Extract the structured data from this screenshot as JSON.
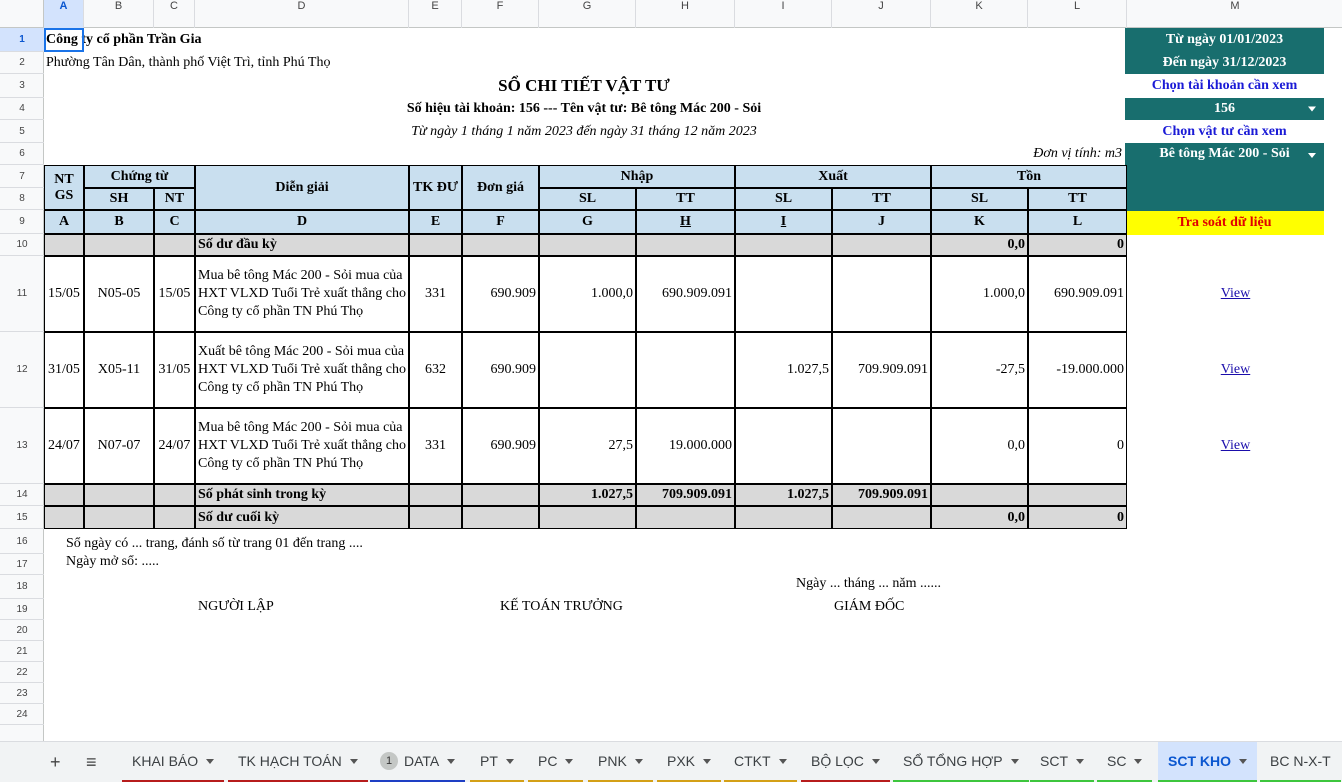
{
  "columns": [
    "A",
    "B",
    "C",
    "D",
    "E",
    "F",
    "G",
    "H",
    "I",
    "J",
    "K",
    "L",
    "M"
  ],
  "rows": [
    "1",
    "2",
    "3",
    "4",
    "5",
    "6",
    "7",
    "8",
    "9",
    "10",
    "11",
    "12",
    "13",
    "14",
    "15",
    "16",
    "17",
    "18",
    "19",
    "20",
    "21",
    "22",
    "23",
    "24"
  ],
  "company": "Công ty cổ phần Trần Gia",
  "address": "Phường Tân Dân, thành phố Việt Trì, tỉnh Phú Thọ",
  "report_title": "SỔ CHI TIẾT VẬT TƯ",
  "report_subtitle": "Số hiệu tài khoản: 156 --- Tên vật tư: Bê tông Mác 200 - Sỏi",
  "report_period": "Từ ngày 1 tháng 1 năm 2023 đến ngày 31 tháng 12 năm 2023",
  "unit": "Đơn vị tính: m3",
  "panel": {
    "from_date": "Từ ngày 01/01/2023",
    "to_date": "Đến ngày 31/12/2023",
    "choose_account_label": "Chọn tài khoản cần xem",
    "account_value": "156",
    "choose_material_label": "Chọn vật tư cần xem",
    "material_value": "Bê tông Mác 200 - Sỏi",
    "check_button": "Tra soát dữ liệu",
    "view_link": "View"
  },
  "headers": {
    "ntgs": "NT GS",
    "chung_tu": "Chứng từ",
    "sh": "SH",
    "nt": "NT",
    "dien_giai": "Diễn giải",
    "tk_du": "TK ĐƯ",
    "don_gia": "Đơn giá",
    "nhap": "Nhập",
    "xuat": "Xuất",
    "ton": "Tồn",
    "sl": "SL",
    "tt": "TT",
    "letters": [
      "A",
      "B",
      "C",
      "D",
      "E",
      "F",
      "G",
      "H",
      "I",
      "J",
      "K",
      "L"
    ]
  },
  "opening": {
    "label": "Số dư đầu kỳ",
    "sl": "0,0",
    "tt": "0"
  },
  "entries": [
    {
      "ntgs": "15/05",
      "sh": "N05-05",
      "nt": "15/05",
      "desc": "Mua bê tông Mác 200 - Sỏi mua của HXT VLXD Tuổi Trẻ xuất thẳng cho Công ty cổ phần TN Phú Thọ",
      "tk": "331",
      "gia": "690.909",
      "nhap_sl": "1.000,0",
      "nhap_tt": "690.909.091",
      "xuat_sl": "",
      "xuat_tt": "",
      "ton_sl": "1.000,0",
      "ton_tt": "690.909.091"
    },
    {
      "ntgs": "31/05",
      "sh": "X05-11",
      "nt": "31/05",
      "desc": "Xuất bê tông Mác 200 - Sỏi mua của HXT VLXD Tuổi Trẻ xuất thẳng cho Công ty cổ phần TN Phú Thọ",
      "tk": "632",
      "gia": "690.909",
      "nhap_sl": "",
      "nhap_tt": "",
      "xuat_sl": "1.027,5",
      "xuat_tt": "709.909.091",
      "ton_sl": "-27,5",
      "ton_tt": "-19.000.000"
    },
    {
      "ntgs": "24/07",
      "sh": "N07-07",
      "nt": "24/07",
      "desc": "Mua bê tông Mác 200 - Sỏi mua của HXT VLXD Tuổi Trẻ xuất thẳng cho Công ty cổ phần TN Phú Thọ",
      "tk": "331",
      "gia": "690.909",
      "nhap_sl": "27,5",
      "nhap_tt": "19.000.000",
      "xuat_sl": "",
      "xuat_tt": "",
      "ton_sl": "0,0",
      "ton_tt": "0"
    }
  ],
  "period_total": {
    "label": "Số phát sinh trong kỳ",
    "nhap_sl": "1.027,5",
    "nhap_tt": "709.909.091",
    "xuat_sl": "1.027,5",
    "xuat_tt": "709.909.091"
  },
  "closing": {
    "label": "Số dư cuối kỳ",
    "sl": "0,0",
    "tt": "0"
  },
  "footer": {
    "pages_note": "Sổ ngày có ... trang, đánh số từ trang 01 đến trang ....",
    "open_date": "Ngày mở sổ: .....",
    "date_line": "Ngày ... tháng ... năm ......",
    "preparer": "NGƯỜI LẬP",
    "chief_accountant": "KẾ TOÁN TRƯỞNG",
    "director": "GIÁM ĐỐC"
  },
  "tabs": {
    "add_icon": "+",
    "menu_icon": "≡",
    "items": [
      {
        "label": "KHAI BÁO",
        "color": "#b71c1c"
      },
      {
        "label": "TK HẠCH TOÁN",
        "color": "#b71c1c"
      },
      {
        "label": "DATA",
        "color": "#1e3fc4",
        "badge": "1"
      },
      {
        "label": "PT",
        "color": "#d4a017"
      },
      {
        "label": "PC",
        "color": "#d4a017"
      },
      {
        "label": "PNK",
        "color": "#d4a017"
      },
      {
        "label": "PXK",
        "color": "#d4a017"
      },
      {
        "label": "CTKT",
        "color": "#d4a017"
      },
      {
        "label": "BỘ LỌC",
        "color": "#b71c1c"
      },
      {
        "label": "SỔ TỔNG HỢP",
        "color": "#3ec63e"
      },
      {
        "label": "SCT",
        "color": "#3ec63e"
      },
      {
        "label": "SC",
        "color": "#3ec63e"
      },
      {
        "label": "SCT KHO",
        "color": "#3ec63e",
        "active": true
      },
      {
        "label": "BC N-X-T",
        "color": "#3ec63e"
      }
    ]
  }
}
